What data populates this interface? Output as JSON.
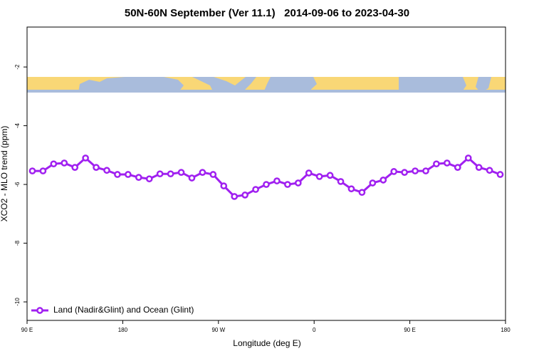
{
  "chart_data": {
    "type": "line",
    "title": "50N-60N September (Ver 11.1)   2014-09-06 to 2023-04-30",
    "x_label": "Longitude (deg E)",
    "y_label": "XCO2 - MLO trend (ppm)",
    "x": [
      95,
      105,
      115,
      125,
      135,
      145,
      155,
      165,
      175,
      185,
      195,
      205,
      215,
      225,
      235,
      245,
      255,
      265,
      275,
      285,
      295,
      305,
      315,
      325,
      335,
      345,
      355,
      365,
      375,
      385,
      395,
      405,
      415,
      425,
      435,
      445,
      455,
      465,
      475,
      485,
      495,
      505,
      515,
      525,
      535
    ],
    "series": [
      {
        "name": "Land (Nadir&Glint) and Ocean (Glint)",
        "color": "#a020f0",
        "values": [
          -5.54,
          -5.54,
          -5.3,
          -5.27,
          -5.42,
          -5.1,
          -5.42,
          -5.52,
          -5.66,
          -5.66,
          -5.76,
          -5.81,
          -5.64,
          -5.64,
          -5.59,
          -5.78,
          -5.59,
          -5.66,
          -6.05,
          -6.41,
          -6.36,
          -6.17,
          -6.0,
          -5.88,
          -6.0,
          -5.95,
          -5.61,
          -5.73,
          -5.69,
          -5.9,
          -6.15,
          -6.27,
          -5.95,
          -5.85,
          -5.56,
          -5.59,
          -5.54,
          -5.54,
          -5.3,
          -5.27,
          -5.42,
          -5.1,
          -5.42,
          -5.52,
          -5.66
        ]
      }
    ],
    "xlim": [
      90,
      540
    ],
    "xticks": [
      {
        "value": 90,
        "label": "90 E"
      },
      180,
      {
        "value": 270,
        "label": "90 W"
      },
      {
        "value": 360,
        "label": "0"
      },
      {
        "value": 450,
        "label": "90 E"
      },
      {
        "value": 540,
        "label": "180"
      }
    ],
    "ylim": [
      -10.63,
      -0.64
    ],
    "yticks": [
      -10,
      -8,
      -6,
      -4,
      -2
    ],
    "legend": "bottom-left"
  }
}
